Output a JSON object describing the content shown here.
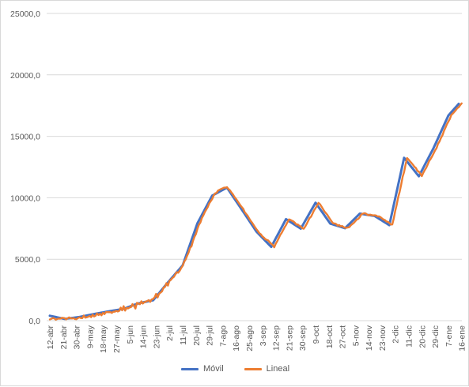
{
  "chart_data": {
    "type": "line",
    "title": "",
    "xlabel": "",
    "ylabel": "",
    "ylim": [
      0,
      25000
    ],
    "y_ticks": [
      "0,0",
      "5000,0",
      "10000,0",
      "15000,0",
      "20000,0",
      "25000,0"
    ],
    "y_tick_values": [
      0,
      5000,
      10000,
      15000,
      20000,
      25000
    ],
    "x_tick_labels": [
      "12-abr",
      "21-abr",
      "30-abr",
      "9-may",
      "18-may",
      "27-may",
      "5-jun",
      "14-jun",
      "23-jun",
      "2-jul",
      "11-jul",
      "20-jul",
      "29-jul",
      "7-ago",
      "16-ago",
      "25-ago",
      "3-sep",
      "12-sep",
      "21-sep",
      "30-sep",
      "9-oct",
      "18-oct",
      "27-oct",
      "5-nov",
      "14-nov",
      "23-nov",
      "2-dic",
      "11-dic",
      "20-dic",
      "29-dic",
      "7-ene",
      "16-ene"
    ],
    "x_start": "12-abr",
    "day_step": 9,
    "grid": true,
    "legend_position": "bottom",
    "series": [
      {
        "name": "Móvil",
        "color": "#4472C4",
        "values": [
          400,
          374,
          348,
          322,
          296,
          270,
          244,
          218,
          192,
          166,
          140,
          156,
          172,
          188,
          204,
          220,
          236,
          252,
          268,
          284,
          300,
          324,
          348,
          372,
          396,
          420,
          444,
          468,
          492,
          516,
          540,
          562,
          584,
          606,
          628,
          650,
          672,
          694,
          716,
          738,
          760,
          780,
          800,
          820,
          840,
          860,
          880,
          900,
          920,
          940,
          960,
          1005,
          1050,
          1095,
          1140,
          1185,
          1230,
          1275,
          1320,
          1365,
          1410,
          1435,
          1460,
          1485,
          1510,
          1535,
          1560,
          1585,
          1610,
          1635,
          1660,
          1805,
          1950,
          2095,
          2240,
          2385,
          2530,
          2675,
          2820,
          2965,
          3110,
          3249,
          3388,
          3527,
          3666,
          3805,
          3944,
          4083,
          4222,
          4361,
          4500,
          4843,
          5185,
          5528,
          5871,
          6213,
          6556,
          6899,
          7241,
          7584,
          7927,
          8152,
          8377,
          8602,
          8827,
          9052,
          9277,
          9502,
          9727,
          9952,
          10177,
          10242,
          10307,
          10371,
          10436,
          10501,
          10566,
          10631,
          10695,
          10760,
          10825,
          10647,
          10469,
          10292,
          10114,
          9936,
          9758,
          9581,
          9403,
          9225,
          9047,
          8867,
          8686,
          8506,
          8325,
          8145,
          7964,
          7784,
          7603,
          7423,
          7242,
          7118,
          6994,
          6869,
          6745,
          6621,
          6497,
          6373,
          6248,
          6124,
          6000,
          6226,
          6452,
          6678,
          6904,
          7130,
          7356,
          7582,
          7808,
          8034,
          8260,
          8183,
          8105,
          8028,
          7951,
          7873,
          7796,
          7719,
          7642,
          7564,
          7487,
          7698,
          7909,
          8120,
          8331,
          8542,
          8753,
          8964,
          9176,
          9387,
          9598,
          9428,
          9257,
          9087,
          8916,
          8746,
          8576,
          8405,
          8235,
          8064,
          7894,
          7857,
          7820,
          7783,
          7746,
          7709,
          7672,
          7635,
          7598,
          7561,
          7524,
          7643,
          7761,
          7880,
          7998,
          8117,
          8235,
          8354,
          8472,
          8591,
          8709,
          8690,
          8671,
          8652,
          8633,
          8614,
          8595,
          8576,
          8557,
          8538,
          8519,
          8444,
          8369,
          8295,
          8220,
          8145,
          8070,
          7995,
          7921,
          7846,
          7771,
          8319,
          8867,
          9415,
          9963,
          10511,
          11059,
          11607,
          12155,
          12703,
          13251,
          13101,
          12950,
          12800,
          12649,
          12499,
          12349,
          12198,
          12048,
          11897,
          11747,
          11978,
          12209,
          12440,
          12671,
          12902,
          13132,
          13363,
          13594,
          13825,
          14056,
          14320,
          14584,
          14848,
          15112,
          15376,
          15640,
          15904,
          16168,
          16432,
          16696,
          16831,
          16966,
          17101,
          17236,
          17371,
          17506,
          17641
        ]
      },
      {
        "name": "Lineal",
        "color": "#ED7D31",
        "values": [
          100,
          146,
          208,
          186,
          80,
          136,
          170,
          156,
          224,
          225,
          204,
          100,
          181,
          270,
          203,
          171,
          206,
          132,
          114,
          206,
          274,
          215,
          205,
          413,
          243,
          276,
          324,
          379,
          285,
          480,
          339,
          404,
          585,
          455,
          558,
          434,
          633,
          534,
          693,
          692,
          690,
          697,
          625,
          729,
          726,
          798,
          746,
          796,
          1062,
          842,
          1182,
          818,
          1041,
          993,
          1073,
          1106,
          1347,
          1206,
          986,
          1450,
          1390,
          1337,
          1575,
          1394,
          1501,
          1553,
          1599,
          1669,
          1530,
          1726,
          1770,
          1900,
          2177,
          1887,
          2183,
          2285,
          2380,
          2689,
          2745,
          3056,
          2855,
          3234,
          3319,
          3473,
          3555,
          3762,
          3945,
          3899,
          4065,
          4284,
          4466,
          4798,
          4973,
          5280,
          5544,
          5922,
          6052,
          6497,
          6820,
          7059,
          7471,
          7805,
          7987,
          8349,
          8570,
          8838,
          9043,
          9249,
          9543,
          9723,
          9898,
          10185,
          10354,
          10409,
          10593,
          10647,
          10713,
          10763,
          10822,
          10822,
          10864,
          10712,
          10612,
          10433,
          10286,
          10078,
          9932,
          9758,
          9582,
          9401,
          9241,
          9110,
          8831,
          8685,
          8537,
          8322,
          8133,
          7979,
          7791,
          7608,
          7434,
          7287,
          7107,
          7025,
          6852,
          6761,
          6629,
          6574,
          6522,
          6379,
          6261,
          6160,
          5970,
          6252,
          6450,
          6694,
          6959,
          7131,
          7355,
          7589,
          7778,
          8017,
          8239,
          8199,
          8136,
          8074,
          7966,
          7822,
          7825,
          7720,
          7667,
          7525,
          7479,
          7657,
          7869,
          8115,
          8357,
          8469,
          8717,
          8980,
          9155,
          9359,
          9585,
          9481,
          9293,
          9097,
          8894,
          8752,
          8613,
          8413,
          8233,
          8060,
          7911,
          7912,
          7862,
          7737,
          7783,
          7674,
          7705,
          7620,
          7555,
          7567,
          7584,
          7620,
          7774,
          7869,
          7963,
          8104,
          8235,
          8279,
          8427,
          8647,
          8699,
          8743,
          8721,
          8628,
          8572,
          8630,
          8593,
          8567,
          8577,
          8557,
          8482,
          8489,
          8426,
          8322,
          8239,
          8188,
          8068,
          8046,
          7950,
          7819,
          7829,
          8308,
          8939,
          9432,
          10050,
          10488,
          11056,
          11701,
          12098,
          12703,
          13233,
          13114,
          12964,
          12831,
          12686,
          12519,
          12422,
          12190,
          12119,
          11973,
          11761,
          12032,
          12256,
          12444,
          12711,
          12996,
          13166,
          13375,
          13615,
          13860,
          14044,
          14393,
          14585,
          14872,
          15089,
          15437,
          15697,
          15987,
          16203,
          16420,
          16746,
          16853,
          16984,
          17120,
          17289,
          17367,
          17538,
          17680
        ]
      }
    ]
  }
}
